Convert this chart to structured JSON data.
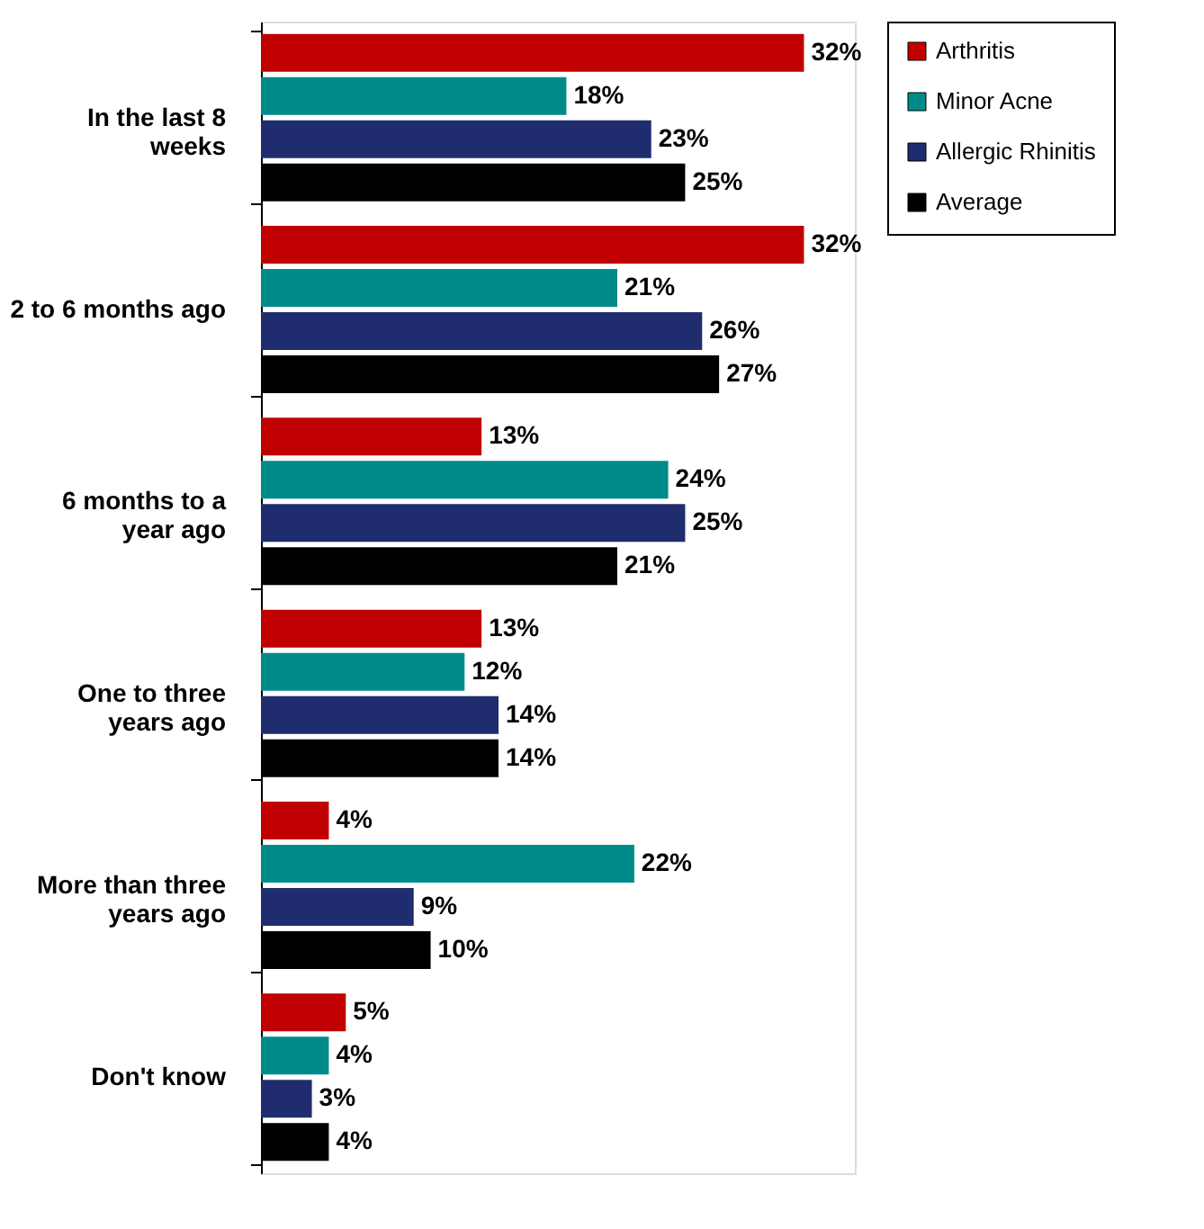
{
  "chart_data": {
    "type": "bar",
    "orientation": "horizontal",
    "categories": [
      "In the last 8 weeks",
      "2 to 6 months ago",
      "6 months to a year ago",
      "One to three years ago",
      "More than three years ago",
      "Don't know"
    ],
    "xlim": [
      0,
      35
    ],
    "tick_labels": "y",
    "grid": false,
    "legend": "right",
    "series": [
      {
        "name": "Arthritis",
        "color": "#c00000",
        "values": [
          32,
          32,
          13,
          13,
          4,
          5
        ],
        "value_labels": [
          "32%",
          "32%",
          "13%",
          "13%",
          "4%",
          "5%"
        ]
      },
      {
        "name": "Minor Acne",
        "color": "#008b8b",
        "values": [
          18,
          21,
          24,
          12,
          22,
          4
        ],
        "value_labels": [
          "18%",
          "21%",
          "24%",
          "12%",
          "22%",
          "4%"
        ]
      },
      {
        "name": "Allergic Rhinitis",
        "color": "#1f2d6e",
        "values": [
          23,
          26,
          25,
          14,
          9,
          3
        ],
        "value_labels": [
          "23%",
          "26%",
          "25%",
          "14%",
          "9%",
          "3%"
        ]
      },
      {
        "name": "Average",
        "color": "#000000",
        "values": [
          25,
          27,
          21,
          14,
          10,
          4
        ],
        "value_labels": [
          "25%",
          "27%",
          "21%",
          "14%",
          "10%",
          "4%"
        ]
      }
    ]
  }
}
